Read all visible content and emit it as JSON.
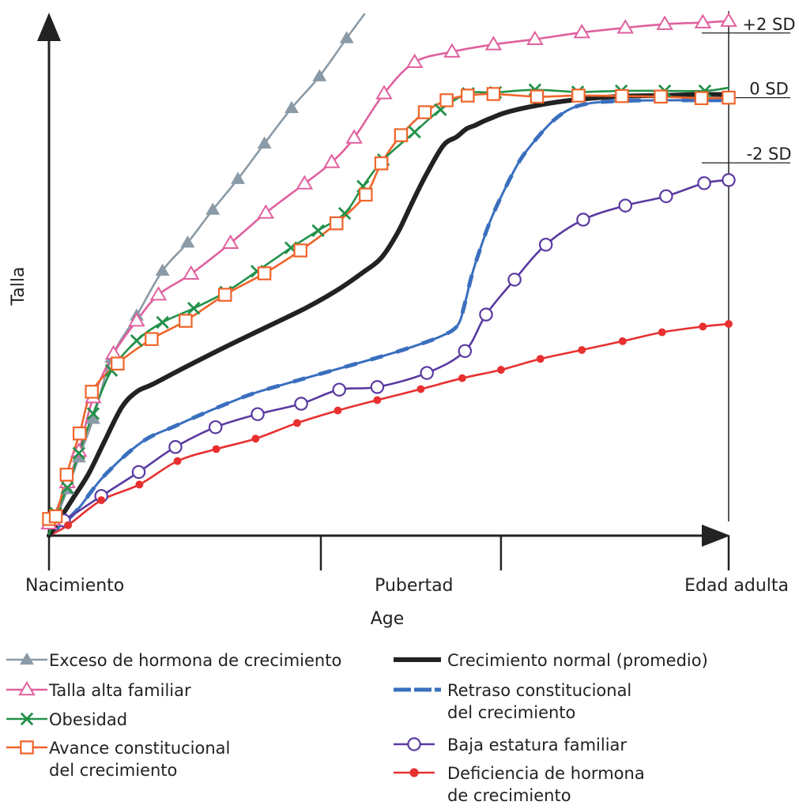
{
  "chart_data": {
    "type": "line",
    "xlabel": "Age",
    "ylabel": "Talla",
    "x_ticks": [
      {
        "x": 0,
        "label": "Nacimiento"
      },
      {
        "x": 40,
        "label": ""
      },
      {
        "x": 66.5,
        "label": ""
      },
      {
        "x": 100,
        "label": "Edad adulta"
      }
    ],
    "pubertad_label": {
      "x": 53.7,
      "label": "Pubertad"
    },
    "xlim": [
      0,
      100
    ],
    "ylim": [
      0,
      100
    ],
    "sd_lines": [
      {
        "label": "+2 SD",
        "y": 96.4
      },
      {
        "label": "0 SD",
        "y": 84.0
      },
      {
        "label": "-2 SD",
        "y": 71.5
      }
    ],
    "series": [
      {
        "name": "Exceso de hormona de crecimiento",
        "color": "#8a9aa6",
        "marker": "filled-triangle",
        "x": [
          0,
          1,
          2.7,
          4.4,
          6.5,
          9.2,
          12.9,
          16.7,
          20.4,
          24.1,
          27.8,
          31.7,
          35.7,
          39.8,
          43.8,
          46.4
        ],
        "y": [
          0,
          3.0,
          8.9,
          15.0,
          22.4,
          34.1,
          42.2,
          50.8,
          56.2,
          62.5,
          68.4,
          75.2,
          82.0,
          88.1,
          95.4,
          100
        ]
      },
      {
        "name": "Talla alta familiar",
        "color": "#e0609e",
        "marker": "open-triangle",
        "x": [
          0,
          0.5,
          2.7,
          4.4,
          6.5,
          9.5,
          12.9,
          16.1,
          20.9,
          26.7,
          31.9,
          37.6,
          41.6,
          44.9,
          49.3,
          53.8,
          59.3,
          65.4,
          71.5,
          78.4,
          84.8,
          90.6,
          96.2,
          100
        ],
        "y": [
          2.3,
          3.0,
          10.2,
          16.2,
          26.5,
          34.9,
          41.2,
          46.2,
          50.2,
          56.1,
          61.9,
          67.5,
          71.6,
          76.3,
          84.8,
          90.8,
          92.8,
          94.2,
          95.2,
          96.5,
          97.4,
          98.1,
          98.4,
          98.7
        ]
      },
      {
        "name": "Obesidad",
        "color": "#23914a",
        "marker": "x",
        "x": [
          0,
          1,
          2.7,
          4.4,
          6.5,
          9.2,
          12.9,
          16.7,
          21.3,
          26.0,
          30.6,
          35.6,
          39.6,
          43.5,
          46.2,
          49.2,
          53.8,
          57.6,
          61.7,
          65.7,
          71.5,
          77.8,
          84.2,
          90.6,
          96.5,
          100
        ],
        "y": [
          0.3,
          4.3,
          9.2,
          15.8,
          23.4,
          31.7,
          37.4,
          40.9,
          43.6,
          46.7,
          50.7,
          55.2,
          58.5,
          61.8,
          67.0,
          72.1,
          77.4,
          81.7,
          84.8,
          85.0,
          85.5,
          85.1,
          85.3,
          85.3,
          85.3,
          85.9
        ]
      },
      {
        "name": "Avance constitucional del crecimiento",
        "color": "#f0642a",
        "marker": "open-square",
        "x": [
          0,
          1,
          2.6,
          4.5,
          6.3,
          10.1,
          15.1,
          20.1,
          25.9,
          31.7,
          37.0,
          42.3,
          46.6,
          48.9,
          51.8,
          55.3,
          58.5,
          61.6,
          65.4,
          71.8,
          77.9,
          84.3,
          90.0,
          96.0,
          100
        ],
        "y": [
          3.2,
          3.7,
          11.7,
          19.6,
          27.6,
          33.0,
          37.7,
          41.2,
          46.2,
          50.3,
          54.7,
          59.9,
          65.4,
          71.4,
          76.8,
          81.2,
          83.5,
          84.4,
          84.7,
          84.2,
          84.4,
          84.3,
          84.2,
          83.9,
          84.0
        ]
      },
      {
        "name": "Crecimiento normal (promedio)",
        "color": "#222222",
        "marker": "none",
        "x": [
          0,
          1.7,
          3.5,
          5.8,
          8.1,
          10.7,
          12.9,
          15.2,
          19.3,
          25.5,
          32.0,
          37.7,
          42.3,
          46.1,
          48.9,
          51.3,
          53.3,
          55.4,
          58.0,
          60.0,
          61.4,
          62.7,
          63.8,
          65.1,
          67.1,
          70.6,
          75.0,
          80.0,
          85.0,
          90.0,
          95.0,
          100
        ],
        "y": [
          0,
          3.4,
          7.1,
          11.8,
          17.9,
          24.6,
          27.6,
          29.0,
          31.8,
          35.9,
          40.0,
          43.6,
          47.0,
          50.4,
          53.3,
          58.1,
          63.5,
          69.0,
          74.8,
          76.5,
          78.0,
          78.7,
          79.4,
          80.1,
          81.1,
          82.2,
          83.2,
          83.9,
          84.3,
          84.4,
          84.6,
          84.6
        ]
      },
      {
        "name": "Retraso constitucional del crecimiento",
        "color": "#3a6fbe",
        "marker": "none",
        "dashed": true,
        "x": [
          0,
          4.0,
          8.0,
          13.6,
          18.7,
          24.3,
          29.9,
          35.6,
          41.2,
          46.9,
          52.5,
          57.6,
          60.1,
          61.2,
          62.2,
          63.5,
          65.0,
          67.0,
          69.3,
          71.7,
          74.2,
          76.8,
          80.0,
          85.0,
          90.0,
          95.0,
          100
        ],
        "y": [
          0,
          4.7,
          11.3,
          17.9,
          21.1,
          24.3,
          27.2,
          29.4,
          31.5,
          33.6,
          35.8,
          38.2,
          40.3,
          44.6,
          49.9,
          55.2,
          60.6,
          66.3,
          72.0,
          76.1,
          79.6,
          81.9,
          83.0,
          83.4,
          83.5,
          83.5,
          83.5
        ]
      },
      {
        "name": "Baja estatura familiar",
        "color": "#5a3aa0",
        "marker": "open-circle",
        "x": [
          0,
          2.2,
          7.7,
          13.2,
          18.6,
          24.5,
          30.7,
          37.1,
          42.7,
          48.3,
          55.6,
          61.2,
          64.3,
          68.5,
          73.1,
          78.6,
          84.8,
          90.8,
          96.4,
          100
        ],
        "y": [
          1.6,
          2.9,
          7.6,
          12.2,
          17.0,
          20.8,
          23.3,
          25.3,
          28.0,
          28.5,
          31.2,
          35.4,
          42.4,
          49.1,
          55.8,
          60.6,
          63.3,
          65.1,
          67.6,
          68.2
        ]
      },
      {
        "name": "Deficiencia de hormona de crecimiento",
        "color": "#e83030",
        "marker": "filled-dot",
        "x": [
          0,
          2.8,
          7.7,
          13.3,
          18.9,
          24.6,
          30.4,
          36.5,
          42.5,
          48.3,
          54.7,
          60.8,
          66.5,
          72.3,
          78.4,
          84.4,
          90.2,
          96.2,
          100
        ],
        "y": [
          0,
          2.0,
          6.8,
          9.8,
          14.3,
          16.6,
          18.6,
          21.6,
          24.0,
          26.0,
          28.1,
          30.2,
          31.8,
          33.9,
          35.6,
          37.3,
          39.0,
          40.1,
          40.6
        ]
      }
    ]
  },
  "legend": {
    "left": [
      {
        "key": "exceso",
        "lines": [
          "Exceso de hormona de crecimiento"
        ]
      },
      {
        "key": "talla_alta",
        "lines": [
          "Talla alta familiar"
        ]
      },
      {
        "key": "obesidad",
        "lines": [
          "Obesidad"
        ]
      },
      {
        "key": "avance",
        "lines": [
          "Avance constitucional",
          "del crecimiento"
        ]
      }
    ],
    "right": [
      {
        "key": "normal",
        "lines": [
          "Crecimiento normal (promedio)"
        ]
      },
      {
        "key": "retraso",
        "lines": [
          "Retraso constitucional",
          "del crecimiento"
        ]
      },
      {
        "key": "baja",
        "lines": [
          "Baja estatura familiar"
        ]
      },
      {
        "key": "deficiencia",
        "lines": [
          "Deficiencia de hormona",
          "de crecimiento"
        ]
      }
    ]
  }
}
